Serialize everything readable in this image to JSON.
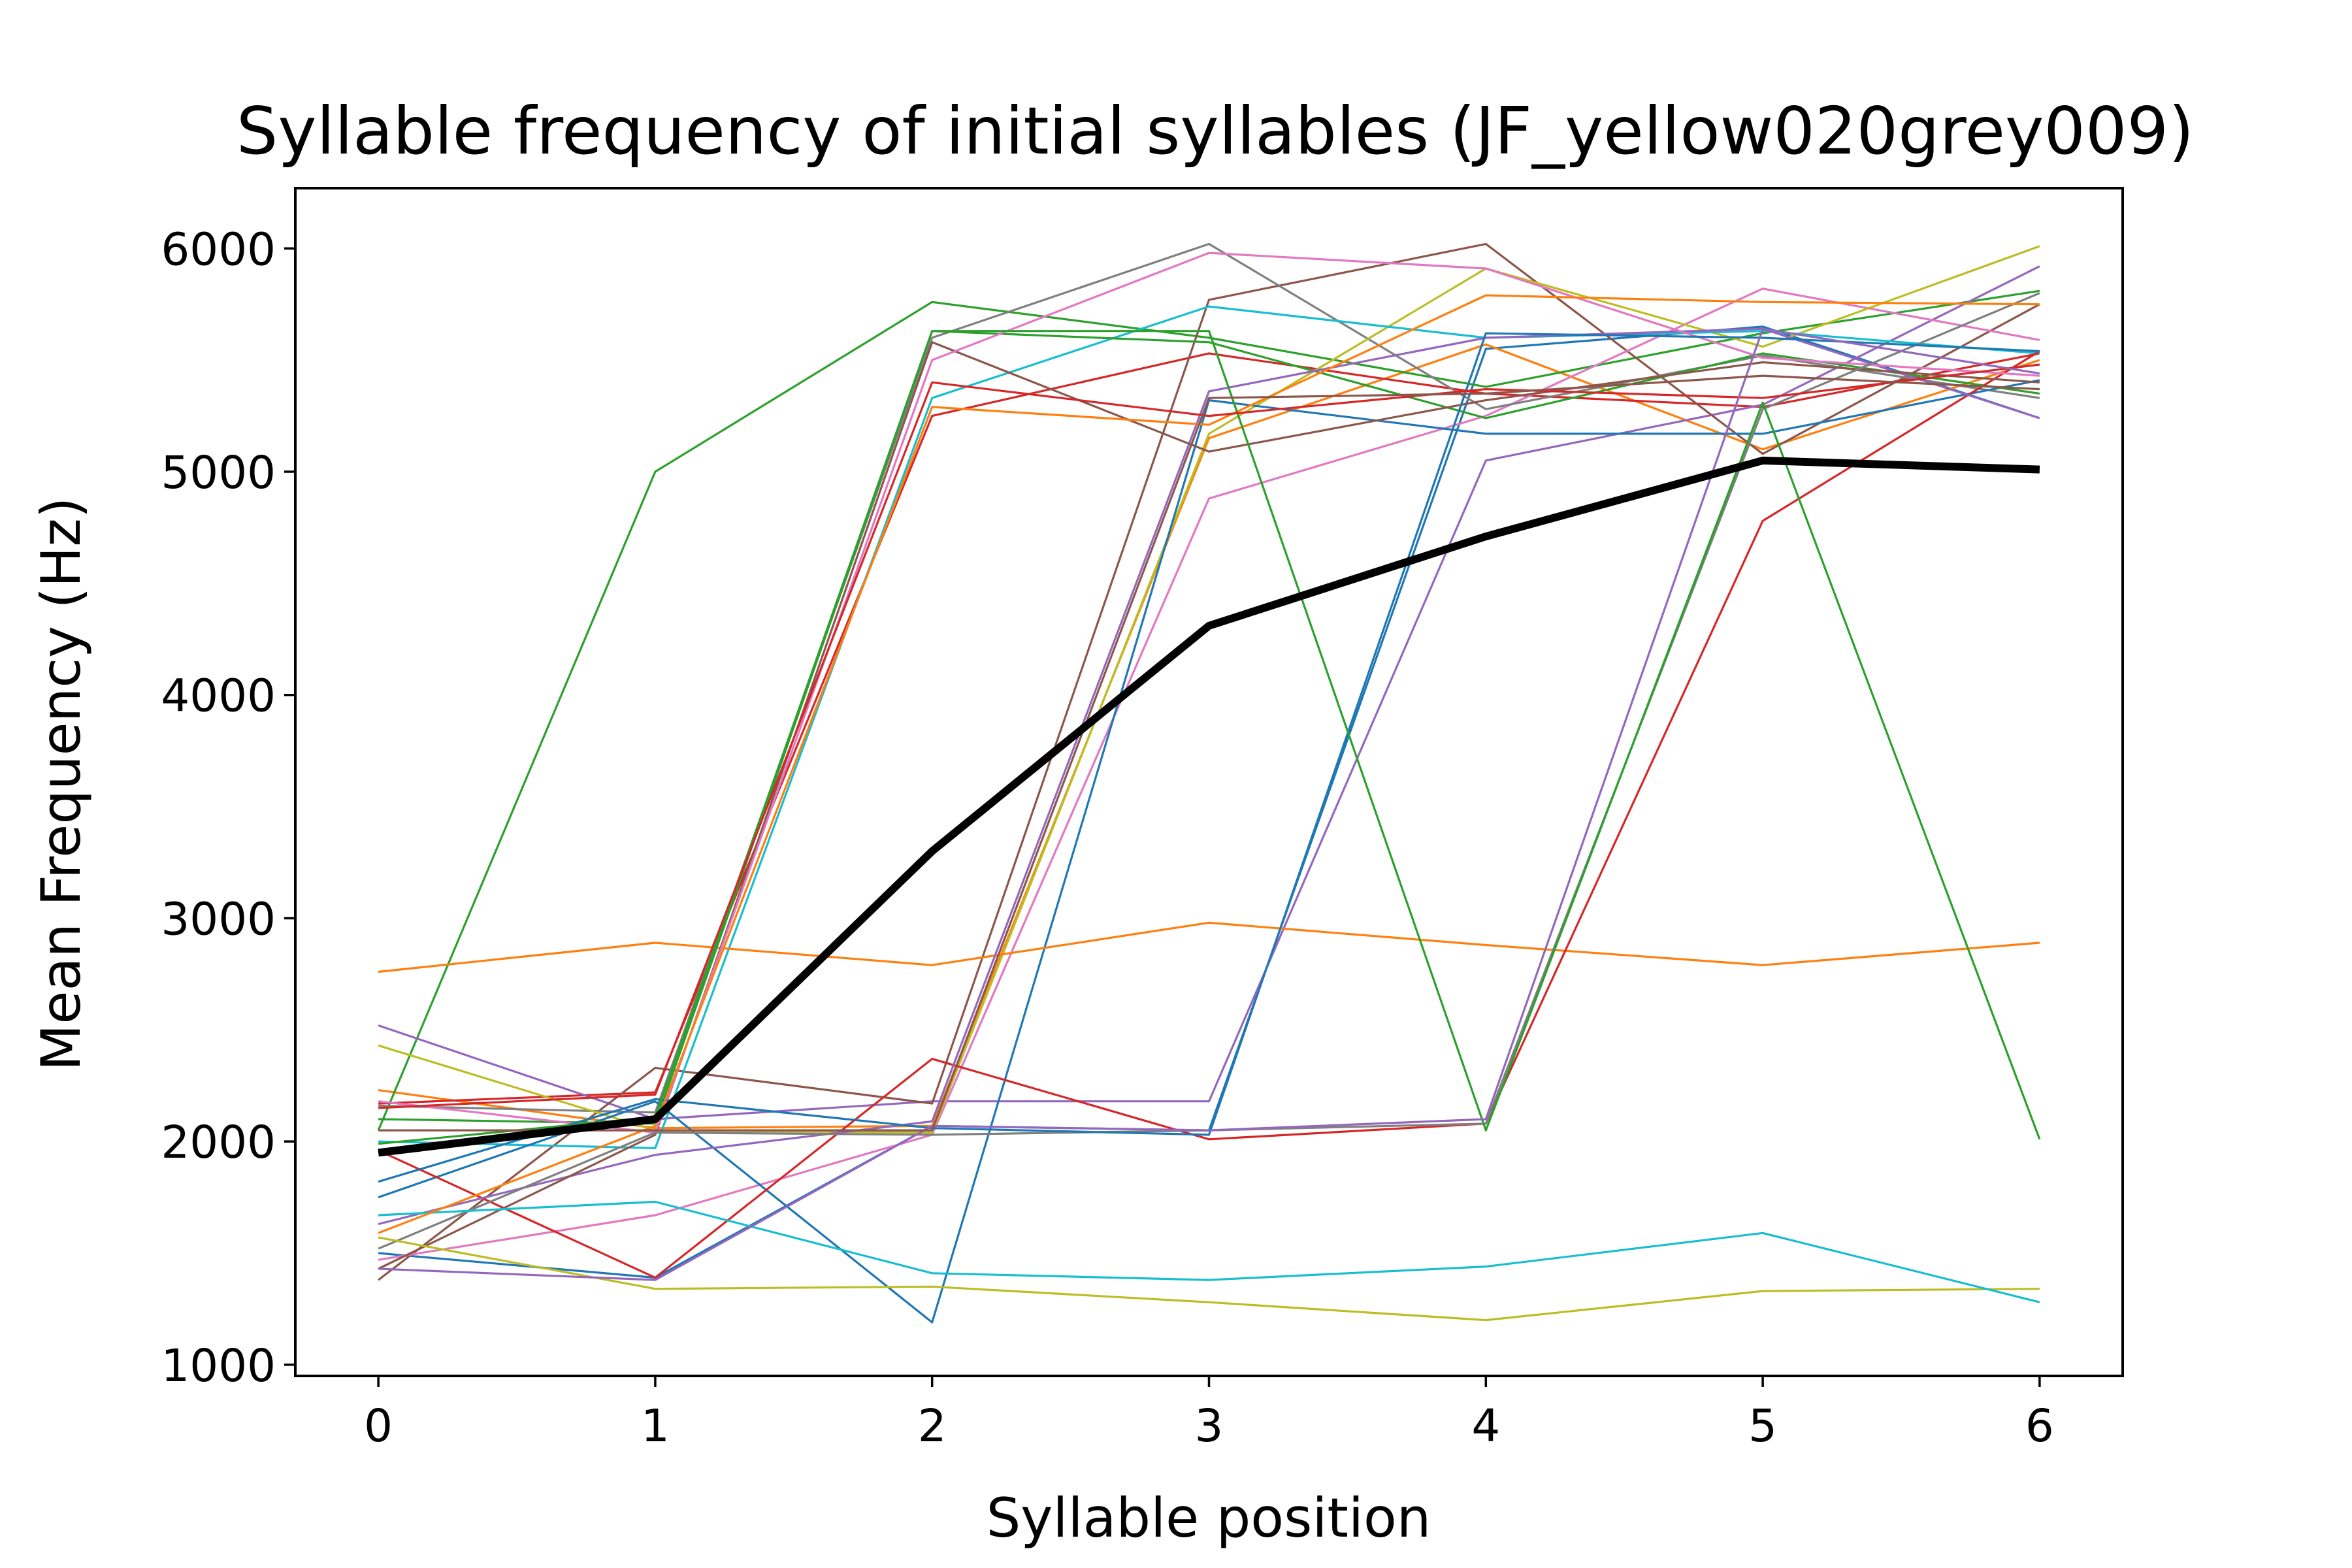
{
  "chart_data": {
    "type": "line",
    "title": "Syllable frequency of initial syllables (JF_yellow020grey009)",
    "xlabel": "Syllable position",
    "ylabel": "Mean Frequency (Hz)",
    "xlim": [
      -0.3,
      6.3
    ],
    "ylim": [
      950,
      6270
    ],
    "x": [
      0,
      1,
      2,
      3,
      4,
      5,
      6
    ],
    "xticks": [
      "0",
      "1",
      "2",
      "3",
      "4",
      "5",
      "6"
    ],
    "yticks": [
      "1000",
      "2000",
      "3000",
      "4000",
      "5000",
      "6000"
    ],
    "grid": false,
    "legend": "none",
    "series": [
      {
        "color": "#1f77b4",
        "values": [
          1500,
          1390,
          2070,
          2050,
          5550,
          5650,
          5240
        ]
      },
      {
        "color": "#ff7f0e",
        "values": [
          2230,
          2060,
          2070,
          5150,
          5570,
          5100,
          5500
        ]
      },
      {
        "color": "#2ca02c",
        "values": [
          2050,
          5000,
          5760,
          5600,
          5380,
          5620,
          5810
        ]
      },
      {
        "color": "#d62728",
        "values": [
          2170,
          2220,
          5250,
          5530,
          5350,
          5290,
          5530
        ]
      },
      {
        "color": "#9467bd",
        "values": [
          2520,
          2100,
          2180,
          2180,
          5050,
          5300,
          5920
        ]
      },
      {
        "color": "#8c564b",
        "values": [
          1380,
          2330,
          2170,
          5770,
          6020,
          5080,
          5750
        ]
      },
      {
        "color": "#e377c2",
        "values": [
          1470,
          1670,
          2030,
          4880,
          5250,
          5820,
          5590
        ]
      },
      {
        "color": "#7f7f7f",
        "values": [
          2160,
          2130,
          5600,
          6020,
          5280,
          5520,
          5330
        ]
      },
      {
        "color": "#bcbd22",
        "values": [
          2430,
          2050,
          2040,
          5170,
          5910,
          5560,
          6010
        ]
      },
      {
        "color": "#17becf",
        "values": [
          2000,
          1970,
          5330,
          5740,
          5600,
          5630,
          5530
        ]
      },
      {
        "color": "#1f77b4",
        "values": [
          1750,
          2180,
          1190,
          5320,
          5170,
          5170,
          5410
        ]
      },
      {
        "color": "#ff7f0e",
        "values": [
          2760,
          2890,
          2790,
          2980,
          2880,
          2790,
          2890
        ]
      },
      {
        "color": "#2ca02c",
        "values": [
          2100,
          2080,
          5630,
          5580,
          5240,
          5530,
          5350
        ]
      },
      {
        "color": "#d62728",
        "values": [
          1960,
          1390,
          2370,
          2010,
          2080,
          4780,
          5540
        ]
      },
      {
        "color": "#9467bd",
        "values": [
          1630,
          1940,
          2090,
          5360,
          5600,
          5640,
          5240
        ]
      },
      {
        "color": "#8c564b",
        "values": [
          1430,
          2030,
          5580,
          5090,
          5320,
          5490,
          5400
        ]
      },
      {
        "color": "#e377c2",
        "values": [
          2180,
          2040,
          5500,
          5980,
          5910,
          5510,
          5430
        ]
      },
      {
        "color": "#7f7f7f",
        "values": [
          1520,
          2040,
          2030,
          2050,
          2080,
          5280,
          5800
        ]
      },
      {
        "color": "#bcbd22",
        "values": [
          1570,
          1340,
          1350,
          1280,
          1200,
          1330,
          1340
        ]
      },
      {
        "color": "#17becf",
        "values": [
          1670,
          1730,
          1410,
          1380,
          1440,
          1590,
          1280
        ]
      },
      {
        "color": "#1f77b4",
        "values": [
          1820,
          2190,
          2060,
          2030,
          5620,
          5600,
          5540
        ]
      },
      {
        "color": "#ff7f0e",
        "values": [
          1590,
          2070,
          5290,
          5210,
          5790,
          5760,
          5750
        ]
      },
      {
        "color": "#2ca02c",
        "values": [
          1990,
          2110,
          5630,
          5630,
          2050,
          5310,
          2010
        ]
      },
      {
        "color": "#d62728",
        "values": [
          2150,
          2210,
          5400,
          5250,
          5370,
          5330,
          5480
        ]
      },
      {
        "color": "#9467bd",
        "values": [
          1430,
          1380,
          2070,
          2050,
          2100,
          5640,
          5440
        ]
      },
      {
        "color": "#8c564b",
        "values": [
          2050,
          2050,
          2050,
          5330,
          5350,
          5430,
          5370
        ]
      },
      {
        "color": "#000000",
        "width": "thick",
        "values": [
          1950,
          2100,
          3300,
          4310,
          4710,
          5050,
          5010
        ]
      }
    ]
  }
}
